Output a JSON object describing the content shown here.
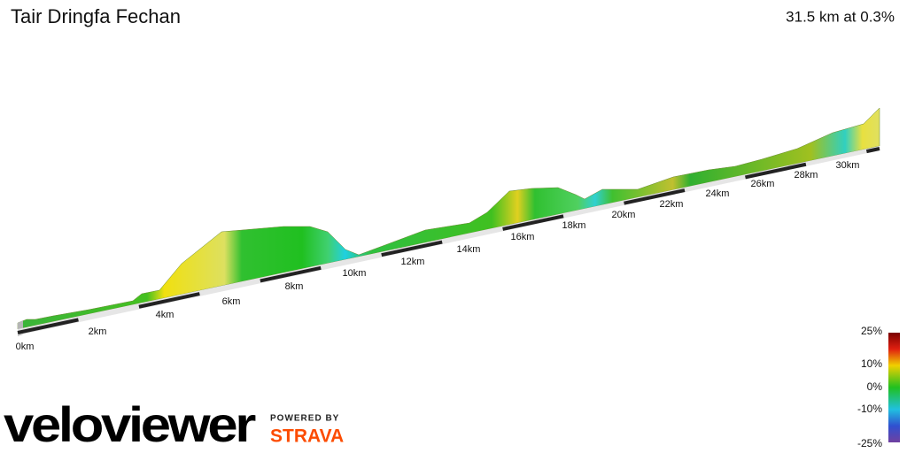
{
  "header": {
    "title": "Tair Dringfa Fechan",
    "summary": "31.5 km at 0.3%"
  },
  "distance_labels": [
    "0km",
    "2km",
    "4km",
    "6km",
    "8km",
    "10km",
    "12km",
    "14km",
    "16km",
    "18km",
    "20km",
    "22km",
    "24km",
    "26km",
    "28km",
    "30km"
  ],
  "gradient_scale": {
    "ticks": [
      "25%",
      "10%",
      "0%",
      "-10%",
      "-25%"
    ]
  },
  "branding": {
    "logo": "veloviewer",
    "powered_by": "POWERED BY",
    "partner": "STRAVA"
  }
}
